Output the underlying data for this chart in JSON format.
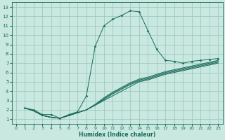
{
  "xlabel": "Humidex (Indice chaleur)",
  "bg_color": "#c8e8e0",
  "grid_color": "#a0c8c0",
  "line_color": "#1a6b5a",
  "xlim": [
    -0.5,
    23.5
  ],
  "ylim": [
    0.5,
    13.5
  ],
  "xticks": [
    0,
    1,
    2,
    3,
    4,
    5,
    6,
    7,
    8,
    9,
    10,
    11,
    12,
    13,
    14,
    15,
    16,
    17,
    18,
    19,
    20,
    21,
    22,
    23
  ],
  "yticks": [
    1,
    2,
    3,
    4,
    5,
    6,
    7,
    8,
    9,
    10,
    11,
    12,
    13
  ],
  "main_x": [
    1,
    2,
    3,
    4,
    5,
    6,
    7,
    8,
    9,
    10,
    11,
    12,
    13,
    14,
    15,
    16,
    17,
    18,
    19,
    20,
    21,
    22,
    23
  ],
  "main_y": [
    2.2,
    2.0,
    1.5,
    1.5,
    1.1,
    1.5,
    1.8,
    3.5,
    8.8,
    11.0,
    11.7,
    12.1,
    12.6,
    12.5,
    10.5,
    8.5,
    7.3,
    7.2,
    7.0,
    7.2,
    7.3,
    7.4,
    7.5
  ],
  "bundle": [
    {
      "x": [
        1,
        2,
        3,
        4,
        5,
        6,
        7,
        8,
        9,
        10,
        11,
        12,
        13,
        14,
        15,
        16,
        17,
        18,
        19,
        20,
        21,
        22,
        23
      ],
      "y": [
        2.2,
        1.9,
        1.4,
        1.2,
        1.1,
        1.4,
        1.7,
        2.0,
        2.5,
        3.0,
        3.5,
        4.0,
        4.5,
        5.0,
        5.2,
        5.5,
        5.8,
        6.0,
        6.2,
        6.4,
        6.6,
        6.8,
        7.0
      ]
    },
    {
      "x": [
        1,
        2,
        3,
        4,
        5,
        6,
        7,
        8,
        9,
        10,
        11,
        12,
        13,
        14,
        15,
        16,
        17,
        18,
        19,
        20,
        21,
        22,
        23
      ],
      "y": [
        2.2,
        1.9,
        1.4,
        1.2,
        1.1,
        1.4,
        1.7,
        2.0,
        2.5,
        3.1,
        3.7,
        4.2,
        4.7,
        5.1,
        5.3,
        5.6,
        5.9,
        6.1,
        6.3,
        6.5,
        6.7,
        6.9,
        7.1
      ]
    },
    {
      "x": [
        1,
        2,
        3,
        4,
        5,
        6,
        7,
        8,
        9,
        10,
        11,
        12,
        13,
        14,
        15,
        16,
        17,
        18,
        19,
        20,
        21,
        22,
        23
      ],
      "y": [
        2.2,
        1.9,
        1.4,
        1.2,
        1.1,
        1.4,
        1.7,
        2.0,
        2.5,
        3.2,
        3.8,
        4.3,
        4.8,
        5.2,
        5.4,
        5.7,
        6.0,
        6.2,
        6.4,
        6.6,
        6.8,
        7.0,
        7.2
      ]
    },
    {
      "x": [
        1,
        2,
        3,
        4,
        5,
        6,
        7,
        8,
        9,
        10,
        11,
        12,
        13,
        14,
        15,
        16,
        17,
        18,
        19,
        20,
        21,
        22,
        23
      ],
      "y": [
        2.2,
        1.9,
        1.4,
        1.2,
        1.1,
        1.4,
        1.7,
        2.0,
        2.6,
        3.3,
        3.9,
        4.4,
        4.9,
        5.3,
        5.5,
        5.8,
        6.1,
        6.3,
        6.5,
        6.7,
        6.9,
        7.1,
        7.3
      ]
    }
  ]
}
